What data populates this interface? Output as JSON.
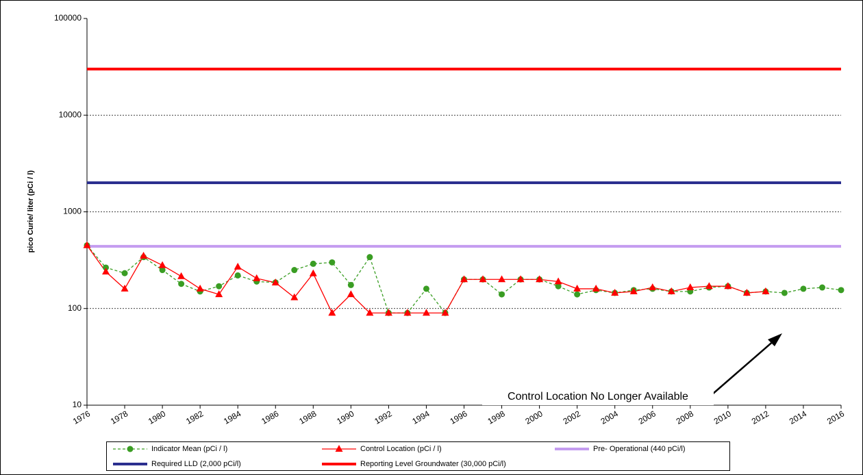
{
  "chart_data": {
    "type": "line",
    "y_label": "pico Curie/ liter (pCi / l)",
    "log_scale": true,
    "grid": true,
    "xlim": [
      1976,
      2016
    ],
    "xticks": [
      1976,
      1978,
      1980,
      1982,
      1984,
      1986,
      1988,
      1990,
      1992,
      1994,
      1996,
      1998,
      2000,
      2002,
      2004,
      2006,
      2008,
      2010,
      2012,
      2014,
      2016
    ],
    "ylim": [
      10,
      100000
    ],
    "yticks": [
      10,
      100,
      1000,
      10000,
      100000
    ],
    "x": [
      1976,
      1977,
      1978,
      1979,
      1980,
      1981,
      1982,
      1983,
      1984,
      1985,
      1986,
      1987,
      1988,
      1989,
      1990,
      1991,
      1992,
      1993,
      1994,
      1995,
      1996,
      1997,
      1998,
      1999,
      2000,
      2001,
      2002,
      2003,
      2004,
      2005,
      2006,
      2007,
      2008,
      2009,
      2010,
      2011,
      2012,
      2013,
      2014,
      2015,
      2016
    ],
    "series": [
      {
        "name": "Indicator Mean (pCi / l)",
        "color": "#3a9d23",
        "marker": "circle",
        "dashed": true,
        "values": [
          450,
          265,
          232,
          340,
          250,
          180,
          150,
          170,
          220,
          190,
          186,
          250,
          290,
          300,
          175,
          340,
          90,
          90,
          160,
          90,
          200,
          200,
          140,
          200,
          200,
          170,
          140,
          155,
          145,
          155,
          160,
          150,
          150,
          165,
          170,
          145,
          150,
          145,
          160,
          165,
          155
        ]
      },
      {
        "name": "Control Location (pCi / l)",
        "color": "#ff0000",
        "marker": "triangle",
        "dashed": false,
        "values": [
          450,
          240,
          160,
          350,
          280,
          215,
          160,
          140,
          270,
          205,
          185,
          130,
          230,
          90,
          140,
          90,
          90,
          90,
          90,
          90,
          200,
          200,
          200,
          200,
          200,
          190,
          160,
          160,
          145,
          150,
          165,
          150,
          165,
          170,
          170,
          145,
          150,
          null,
          null,
          null,
          null
        ]
      }
    ],
    "reference_lines": [
      {
        "name": "Pre- Operational (440 pCi/l)",
        "color": "#c49cf0",
        "value": 440
      },
      {
        "name": "Required LLD (2,000 pCi/l)",
        "color": "#2b2f8f",
        "value": 2000
      },
      {
        "name": "Reporting Level Groundwater (30,000 pCi/l)",
        "color": "#ff0000",
        "value": 30000
      }
    ],
    "annotation": "Control Location No Longer Available"
  }
}
